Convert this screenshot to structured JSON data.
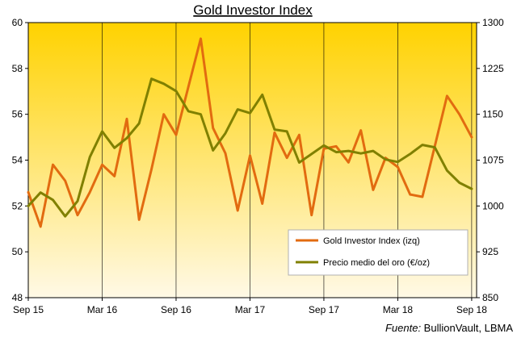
{
  "chart_data": {
    "type": "line",
    "title": "Gold Investor  Index",
    "source": {
      "label": "Fuente:",
      "text": " BullionVault, LBMA"
    },
    "x_tick_labels": [
      "Sep 15",
      "Mar 16",
      "Sep 16",
      "Mar 17",
      "Sep 17",
      "Mar 18",
      "Sep 18"
    ],
    "x_tick_months": [
      0,
      6,
      12,
      18,
      24,
      30,
      36
    ],
    "x_range": [
      0,
      36.4
    ],
    "y_left": {
      "range": [
        48,
        60
      ],
      "ticks": [
        "48",
        "50",
        "52",
        "54",
        "56",
        "58",
        "60"
      ]
    },
    "y_right": {
      "range": [
        850,
        1300
      ],
      "ticks": [
        "850",
        "925",
        "1000",
        "1075",
        "1150",
        "1225",
        "1300"
      ]
    },
    "grid": "vertical",
    "legend_position": "center-right",
    "colors": {
      "background_top": "#ffd200",
      "background_bottom": "#fff9e6",
      "index_line": "#e26b10",
      "price_line": "#808000",
      "grid": "#000000"
    },
    "series": [
      {
        "name": "Gold Investor Index (izq)",
        "axis": "left",
        "x": [
          0,
          1,
          2,
          3,
          4,
          5,
          6,
          7,
          8,
          9,
          10,
          11,
          12,
          13,
          14,
          15,
          16,
          17,
          18,
          19,
          20,
          21,
          22,
          23,
          24,
          25,
          26,
          27,
          28,
          29,
          30,
          31,
          32,
          33,
          34,
          35,
          36
        ],
        "values": [
          52.6,
          51.1,
          53.8,
          53.1,
          51.6,
          52.6,
          53.8,
          53.3,
          55.8,
          51.4,
          53.6,
          56.0,
          55.1,
          57.2,
          59.3,
          55.4,
          54.3,
          51.8,
          54.2,
          52.1,
          55.2,
          54.1,
          55.1,
          51.6,
          54.5,
          54.6,
          53.9,
          55.3,
          52.7,
          54.1,
          53.7,
          52.5,
          52.4,
          54.6,
          56.8,
          56.0,
          55.0
        ]
      },
      {
        "name": "Precio medio del oro (€/oz)",
        "axis": "right",
        "x": [
          0,
          1,
          2,
          3,
          4,
          5,
          6,
          7,
          8,
          9,
          10,
          11,
          12,
          13,
          14,
          15,
          16,
          17,
          18,
          19,
          20,
          21,
          22,
          23,
          24,
          25,
          26,
          27,
          28,
          29,
          30,
          31,
          32,
          33,
          34,
          35,
          36
        ],
        "values": [
          1000,
          1022,
          1010,
          983,
          1008,
          1080,
          1122,
          1095,
          1111,
          1135,
          1208,
          1200,
          1188,
          1155,
          1150,
          1091,
          1119,
          1158,
          1152,
          1182,
          1125,
          1122,
          1071,
          1085,
          1099,
          1088,
          1090,
          1086,
          1090,
          1076,
          1072,
          1085,
          1100,
          1096,
          1058,
          1038,
          1028
        ]
      }
    ]
  }
}
